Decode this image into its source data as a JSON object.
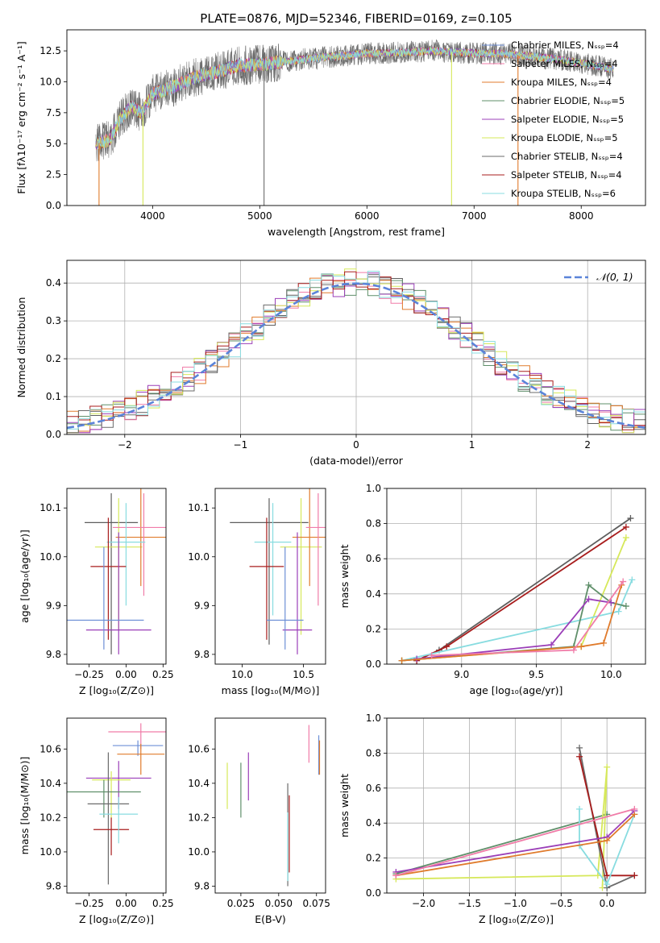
{
  "palette": [
    "#6d8fd6",
    "#f07ca8",
    "#e07b2c",
    "#5e5e5e",
    "#9b3fb8",
    "#d6e85a",
    "#6b6b6b",
    "#a81d1d",
    "#88dce0"
  ],
  "colors": {
    "chabrier_elodie": "#5f8f6a",
    "normal_curve": "#5b84d9",
    "grid": "#b0b0b0"
  },
  "chart_data": [
    {
      "id": "spectrum",
      "type": "line",
      "title": "PLATE=0876, MJD=52346, FIBERID=0169, z=0.105",
      "xlabel": "wavelength [Angstrom, rest frame]",
      "ylabel": "Flux [fλ10⁻¹⁷ erg cm⁻² s⁻¹ A⁻¹]",
      "xlim": [
        3200,
        8600
      ],
      "ylim": [
        0,
        14.2
      ],
      "xticks": [
        4000,
        5000,
        6000,
        7000,
        8000
      ],
      "yticks": [
        0.0,
        2.5,
        5.0,
        7.5,
        10.0,
        12.5
      ],
      "grid": false,
      "legend": "upper right",
      "legend_entries": [
        "Chabrier MILES, Nₛₛₚ=4",
        "Salpeter MILES, Nₛₛₚ=4",
        "Kroupa MILES, Nₛₛₚ=4",
        "Chabrier ELODIE, Nₛₛₚ=5",
        "Salpeter ELODIE, Nₛₛₚ=5",
        "Kroupa ELODIE, Nₛₛₚ=5",
        "Chabrier STELIB, Nₛₛₚ=4",
        "Salpeter STELIB, Nₛₛₚ=4",
        "Kroupa STELIB, Nₛₛₚ=6"
      ],
      "continuum": [
        [
          3470,
          5.0
        ],
        [
          3600,
          5.3
        ],
        [
          3700,
          7.0
        ],
        [
          3800,
          8.0
        ],
        [
          3900,
          7.5
        ],
        [
          4000,
          9.0
        ],
        [
          4200,
          9.6
        ],
        [
          4400,
          10.4
        ],
        [
          4600,
          10.8
        ],
        [
          4800,
          11.3
        ],
        [
          5000,
          11.4
        ],
        [
          5200,
          11.6
        ],
        [
          5400,
          11.8
        ],
        [
          5600,
          12.0
        ],
        [
          5800,
          12.1
        ],
        [
          6000,
          12.3
        ],
        [
          6200,
          12.3
        ],
        [
          6400,
          12.4
        ],
        [
          6600,
          12.5
        ],
        [
          6800,
          12.4
        ],
        [
          7000,
          12.3
        ],
        [
          7200,
          12.3
        ],
        [
          7400,
          12.2
        ],
        [
          7600,
          12.0
        ],
        [
          7800,
          11.8
        ],
        [
          8000,
          11.5
        ],
        [
          8200,
          11.2
        ],
        [
          8300,
          11.0
        ]
      ],
      "drops": [
        3500,
        3910,
        5040,
        6790,
        7410
      ]
    },
    {
      "id": "residuals",
      "type": "histogram",
      "xlabel": "(data-model)/error",
      "ylabel": "Normed distribution",
      "xlim": [
        -2.5,
        2.5
      ],
      "ylim": [
        0,
        0.46
      ],
      "xticks": [
        -2,
        -1,
        0,
        1,
        2
      ],
      "yticks": [
        0.0,
        0.1,
        0.2,
        0.3,
        0.4
      ],
      "grid": true,
      "legend": "upper right",
      "legend_entries": [
        "𝒩(0, 1)"
      ],
      "bin_width": 0.1
    },
    {
      "id": "age_vs_Z",
      "type": "scatter",
      "xlabel": "Z [log₁₀(Z/Z⊙)]",
      "ylabel": "age  [log₁₀(age/yr)]",
      "xlim": [
        -0.4,
        0.27
      ],
      "ylim": [
        9.78,
        10.14
      ],
      "xticks": [
        -0.25,
        0.0,
        0.25
      ],
      "yticks": [
        9.8,
        9.9,
        10.0,
        10.1
      ],
      "points": [
        {
          "x": -0.1,
          "y": 10.07,
          "xerr": 0.18,
          "yerr": [
            0.27,
            0.06
          ],
          "c": 3
        },
        {
          "x": -0.05,
          "y": 10.02,
          "xerr": 0.16,
          "yerr": [
            0.17,
            0.1
          ],
          "c": 5
        },
        {
          "x": 0.1,
          "y": 10.04,
          "xerr": 0.17,
          "yerr": [
            0.1,
            0.1
          ],
          "c": 2
        },
        {
          "x": 0.12,
          "y": 10.06,
          "xerr": 0.21,
          "yerr": [
            0.14,
            0.07
          ],
          "c": 1
        },
        {
          "x": 0.0,
          "y": 10.03,
          "xerr": 0.13,
          "yerr": [
            0.13,
            0.08
          ],
          "c": 8
        },
        {
          "x": -0.12,
          "y": 9.98,
          "xerr": 0.12,
          "yerr": [
            0.15,
            0.1
          ],
          "c": 7
        },
        {
          "x": -0.05,
          "y": 9.85,
          "xerr": 0.22,
          "yerr": [
            0.05,
            0.2
          ],
          "c": 4
        },
        {
          "x": -0.15,
          "y": 9.87,
          "xerr": 0.27,
          "yerr": [
            0.06,
            0.15
          ],
          "c": 0
        }
      ]
    },
    {
      "id": "age_vs_mass",
      "type": "scatter",
      "xlabel": "mass [log₁₀(M/M⊙)]",
      "ylabel": "",
      "xlim": [
        9.78,
        10.68
      ],
      "ylim": [
        9.78,
        10.14
      ],
      "xticks": [
        10.0,
        10.5
      ],
      "yticks": [
        9.8,
        9.9,
        10.0,
        10.1
      ],
      "points": [
        {
          "x": 10.22,
          "y": 10.07,
          "xerr": 0.32,
          "yerr": [
            0.25,
            0.05
          ],
          "c": 3
        },
        {
          "x": 10.48,
          "y": 10.02,
          "xerr": 0.17,
          "yerr": [
            0.18,
            0.1
          ],
          "c": 5
        },
        {
          "x": 10.55,
          "y": 10.04,
          "xerr": 0.14,
          "yerr": [
            0.1,
            0.1
          ],
          "c": 2
        },
        {
          "x": 10.62,
          "y": 10.06,
          "xerr": 0.1,
          "yerr": [
            0.16,
            0.07
          ],
          "c": 1
        },
        {
          "x": 10.25,
          "y": 10.03,
          "xerr": 0.15,
          "yerr": [
            0.15,
            0.08
          ],
          "c": 8
        },
        {
          "x": 10.2,
          "y": 9.98,
          "xerr": 0.14,
          "yerr": [
            0.15,
            0.1
          ],
          "c": 7
        },
        {
          "x": 10.45,
          "y": 9.85,
          "xerr": 0.12,
          "yerr": [
            0.05,
            0.2
          ],
          "c": 4
        },
        {
          "x": 10.35,
          "y": 9.87,
          "xerr": 0.15,
          "yerr": [
            0.06,
            0.15
          ],
          "c": 0
        }
      ]
    },
    {
      "id": "mass_weight_vs_age",
      "type": "line",
      "xlabel": "age  [log₁₀(age/yr)]",
      "ylabel": "mass weight",
      "xlim": [
        8.5,
        10.23
      ],
      "ylim": [
        0,
        1.0
      ],
      "xticks": [
        9.0,
        9.5,
        10.0
      ],
      "yticks": [
        0.0,
        0.2,
        0.4,
        0.6,
        0.8,
        1.0
      ],
      "grid": true,
      "series": [
        {
          "c": 3,
          "points": [
            [
              8.7,
              0.02
            ],
            [
              8.85,
              0.08
            ],
            [
              10.13,
              0.83
            ]
          ]
        },
        {
          "c": 7,
          "points": [
            [
              8.7,
              0.02
            ],
            [
              8.9,
              0.1
            ],
            [
              10.1,
              0.78
            ]
          ]
        },
        {
          "c": 5,
          "points": [
            [
              8.6,
              0.02
            ],
            [
              9.8,
              0.1
            ],
            [
              10.1,
              0.72
            ]
          ]
        },
        {
          "c": 8,
          "points": [
            [
              8.6,
              0.02
            ],
            [
              10.05,
              0.3
            ],
            [
              10.14,
              0.48
            ]
          ]
        },
        {
          "c": 9,
          "points": [
            [
              8.6,
              0.02
            ],
            [
              9.75,
              0.1
            ],
            [
              9.85,
              0.45
            ],
            [
              10.0,
              0.35
            ],
            [
              10.1,
              0.33
            ]
          ]
        },
        {
          "c": 4,
          "points": [
            [
              8.7,
              0.03
            ],
            [
              9.6,
              0.11
            ],
            [
              9.85,
              0.37
            ],
            [
              10.0,
              0.35
            ]
          ]
        },
        {
          "c": 2,
          "points": [
            [
              8.6,
              0.02
            ],
            [
              9.8,
              0.1
            ],
            [
              9.95,
              0.12
            ],
            [
              10.07,
              0.45
            ]
          ]
        },
        {
          "c": 1,
          "points": [
            [
              8.8,
              0.05
            ],
            [
              9.75,
              0.08
            ],
            [
              10.08,
              0.47
            ]
          ]
        }
      ]
    },
    {
      "id": "mass_vs_Z",
      "type": "scatter",
      "xlabel": "Z [log₁₀(Z/Z⊙)]",
      "ylabel": "mass [log₁₀(M/M⊙)]",
      "xlim": [
        -0.4,
        0.27
      ],
      "ylim": [
        9.76,
        10.78
      ],
      "xticks": [
        -0.25,
        0.0,
        0.25
      ],
      "yticks": [
        9.8,
        10.0,
        10.2,
        10.4,
        10.6
      ],
      "points": [
        {
          "x": 0.1,
          "y": 10.7,
          "xerr": 0.22,
          "yerr": [
            0.1,
            0.05
          ],
          "c": 1
        },
        {
          "x": 0.08,
          "y": 10.62,
          "xerr": 0.17,
          "yerr": [
            0.06,
            0.03
          ],
          "c": 0
        },
        {
          "x": 0.1,
          "y": 10.57,
          "xerr": 0.16,
          "yerr": [
            0.12,
            0.06
          ],
          "c": 2
        },
        {
          "x": -0.05,
          "y": 10.43,
          "xerr": 0.22,
          "yerr": [
            0.18,
            0.1
          ],
          "c": 4
        },
        {
          "x": -0.1,
          "y": 10.42,
          "xerr": 0.13,
          "yerr": [
            0.23,
            0.05
          ],
          "c": 5
        },
        {
          "x": -0.15,
          "y": 10.35,
          "xerr": 0.25,
          "yerr": [
            0.15,
            0.07
          ],
          "c": 9
        },
        {
          "x": -0.12,
          "y": 10.28,
          "xerr": 0.14,
          "yerr": [
            0.47,
            0.3
          ],
          "c": 6
        },
        {
          "x": -0.1,
          "y": 10.13,
          "xerr": 0.12,
          "yerr": [
            0.15,
            0.07
          ],
          "c": 7
        },
        {
          "x": -0.05,
          "y": 10.22,
          "xerr": 0.13,
          "yerr": [
            0.17,
            0.1
          ],
          "c": 8
        }
      ]
    },
    {
      "id": "mass_vs_ebv",
      "type": "scatter",
      "xlabel": "E(B-V)",
      "ylabel": "",
      "xlim": [
        0.008,
        0.081
      ],
      "ylim": [
        9.76,
        10.78
      ],
      "xticks": [
        0.025,
        0.05,
        0.075
      ],
      "yticks": [
        9.8,
        10.0,
        10.2,
        10.4,
        10.6
      ],
      "points": [
        {
          "x": 0.07,
          "y": 10.62,
          "yerr": [
            0.1,
            0.12
          ],
          "c": 1
        },
        {
          "x": 0.0765,
          "y": 10.55,
          "yerr": [
            0.1,
            0.13
          ],
          "c": 0
        },
        {
          "x": 0.077,
          "y": 10.55,
          "yerr": [
            0.1,
            0.1
          ],
          "c": 2
        },
        {
          "x": 0.03,
          "y": 10.45,
          "yerr": [
            0.15,
            0.13
          ],
          "c": 4
        },
        {
          "x": 0.016,
          "y": 10.38,
          "yerr": [
            0.13,
            0.14
          ],
          "c": 5
        },
        {
          "x": 0.025,
          "y": 10.37,
          "yerr": [
            0.17,
            0.15
          ],
          "c": 9
        },
        {
          "x": 0.056,
          "y": 10.2,
          "yerr": [
            0.4,
            0.2
          ],
          "c": 6
        },
        {
          "x": 0.057,
          "y": 10.18,
          "yerr": [
            0.3,
            0.15
          ],
          "c": 7
        },
        {
          "x": 0.056,
          "y": 10.03,
          "yerr": [
            0.2,
            0.2
          ],
          "c": 8
        }
      ]
    },
    {
      "id": "mass_weight_vs_Z",
      "type": "line",
      "xlabel": "Z [log₁₀(Z/Z⊙)]",
      "ylabel": "mass weight",
      "xlim": [
        -2.4,
        0.42
      ],
      "ylim": [
        0,
        1.0
      ],
      "xticks": [
        -2.0,
        -1.5,
        -1.0,
        -0.5,
        0.0
      ],
      "yticks": [
        0.0,
        0.2,
        0.4,
        0.6,
        0.8,
        1.0
      ],
      "grid": true,
      "series": [
        {
          "c": 9,
          "points": [
            [
              -2.3,
              0.11
            ],
            [
              0.0,
              0.45
            ]
          ]
        },
        {
          "c": 5,
          "points": [
            [
              -2.3,
              0.08
            ],
            [
              -0.1,
              0.1
            ],
            [
              0.0,
              0.72
            ],
            [
              -0.05,
              0.03
            ]
          ]
        },
        {
          "c": 6,
          "points": [
            [
              -0.3,
              0.83
            ],
            [
              0.0,
              0.03
            ],
            [
              0.3,
              0.1
            ]
          ]
        },
        {
          "c": 7,
          "points": [
            [
              -0.3,
              0.78
            ],
            [
              0.0,
              0.1
            ],
            [
              0.3,
              0.1
            ]
          ]
        },
        {
          "c": 8,
          "points": [
            [
              -0.3,
              0.48
            ],
            [
              -0.3,
              0.27
            ],
            [
              0.0,
              0.05
            ],
            [
              0.3,
              0.45
            ]
          ]
        },
        {
          "c": 4,
          "points": [
            [
              -2.3,
              0.12
            ],
            [
              0.0,
              0.32
            ],
            [
              0.3,
              0.47
            ]
          ]
        },
        {
          "c": 2,
          "points": [
            [
              -2.3,
              0.1
            ],
            [
              0.0,
              0.3
            ],
            [
              0.3,
              0.45
            ]
          ]
        },
        {
          "c": 1,
          "points": [
            [
              -2.3,
              0.1
            ],
            [
              0.3,
              0.48
            ]
          ]
        }
      ]
    }
  ]
}
